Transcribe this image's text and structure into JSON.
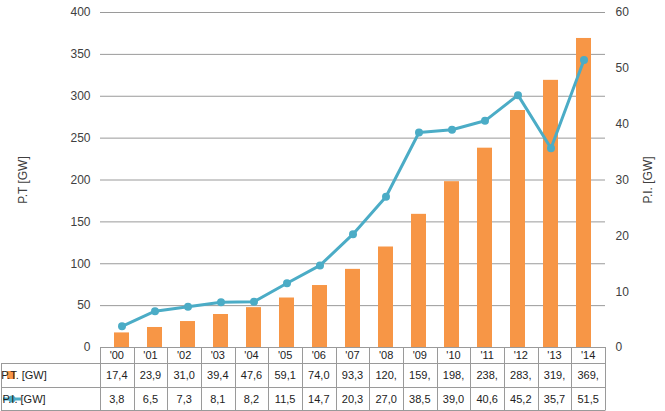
{
  "chart_data": {
    "type": "bar",
    "categories": [
      "'00",
      "'01",
      "'02",
      "'03",
      "'04",
      "'05",
      "'06",
      "'07",
      "'08",
      "'09",
      "'10",
      "'11",
      "'12",
      "'13",
      "'14"
    ],
    "y_label": "P.T [GW]",
    "y2_label": "P.I. [GW]",
    "ylim": [
      0,
      400
    ],
    "yticks": [
      0,
      50,
      100,
      150,
      200,
      250,
      300,
      350,
      400
    ],
    "y2lim": [
      0,
      60
    ],
    "y2ticks": [
      0,
      10,
      20,
      30,
      40,
      50,
      60
    ],
    "grid": true,
    "series": [
      {
        "name": "P.T. [GW]",
        "type": "bar",
        "color": "#F79646",
        "values": [
          17.4,
          23.9,
          31.0,
          39.4,
          47.6,
          59.1,
          74.0,
          93.3,
          120,
          159,
          198,
          238,
          283,
          319,
          369
        ],
        "value_labels": [
          "17,4",
          "23,9",
          "31,0",
          "39,4",
          "47,6",
          "59,1",
          "74,0",
          "93,3",
          "120,",
          "159,",
          "198,",
          "238,",
          "283,",
          "319,",
          "369,"
        ]
      },
      {
        "name": "P.I. [GW]",
        "type": "line",
        "axis": "y2",
        "color": "#4BACC6",
        "marker": "circle",
        "line_style": "solid",
        "values": [
          3.8,
          6.5,
          7.3,
          8.1,
          8.2,
          11.5,
          14.7,
          20.3,
          27.0,
          38.5,
          39.0,
          40.6,
          45.2,
          35.7,
          51.5
        ],
        "value_labels": [
          "3,8",
          "6,5",
          "7,3",
          "8,1",
          "8,2",
          "11,5",
          "14,7",
          "20,3",
          "27,0",
          "38,5",
          "39,0",
          "40,6",
          "45,2",
          "35,7",
          "51,5"
        ]
      }
    ]
  }
}
